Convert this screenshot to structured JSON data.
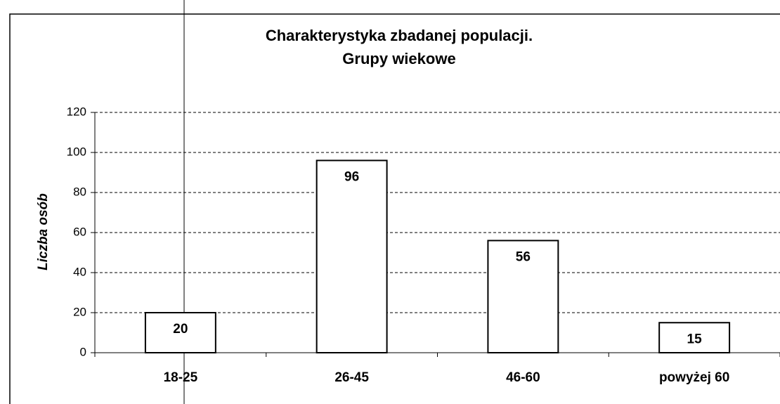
{
  "chart_data": {
    "type": "bar",
    "title": "Charakterystyka zbadanej populacji.",
    "subtitle": "Grupy wiekowe",
    "y_label": "Liczba osób",
    "categories": [
      "18-25",
      "26-45",
      "46-60",
      "powyżej 60"
    ],
    "values": [
      20,
      96,
      56,
      15
    ],
    "color": "#ffffff",
    "ylim": [
      0,
      120
    ],
    "yticks": [
      0,
      20,
      40,
      60,
      80,
      100,
      120
    ],
    "grid": true
  }
}
